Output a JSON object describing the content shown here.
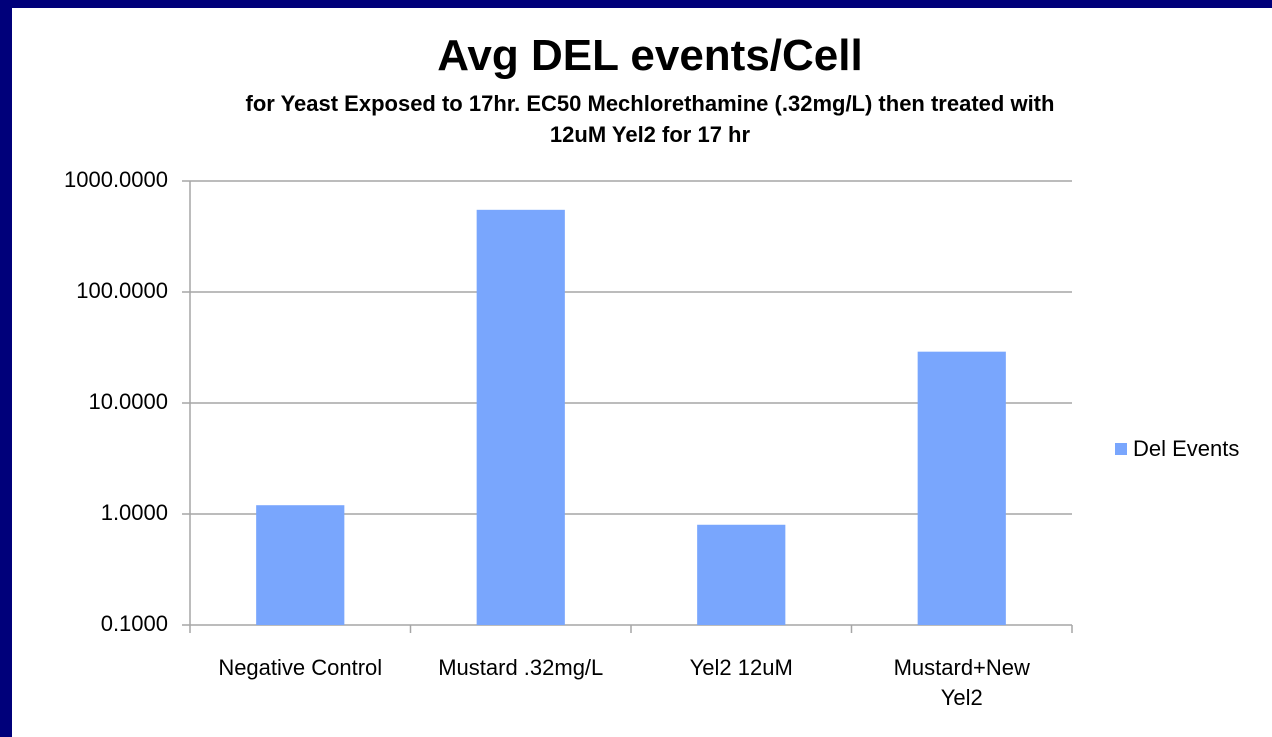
{
  "chart_data": {
    "type": "bar",
    "title": "Avg DEL events/Cell",
    "subtitle": "for Yeast Exposed to 17hr. EC50 Mechlorethamine (.32mg/L) then treated with\n12uM Yel2 for 17 hr",
    "categories": [
      "Negative Control",
      "Mustard .32mg/L",
      "Yel2 12uM",
      "Mustard+New\nYel2"
    ],
    "series": [
      {
        "name": "Del Events",
        "color": "#79a6fd",
        "values": [
          1.2,
          550,
          0.8,
          29
        ]
      }
    ],
    "ylim": [
      0.1,
      1000
    ],
    "log_scale": true,
    "yticks": [
      {
        "value": 0.1,
        "label": "0.1000"
      },
      {
        "value": 1,
        "label": "1.0000"
      },
      {
        "value": 10,
        "label": "10.0000"
      },
      {
        "value": 100,
        "label": "100.0000"
      },
      {
        "value": 1000,
        "label": "1000.0000"
      }
    ],
    "grid": true,
    "legend": "right"
  }
}
